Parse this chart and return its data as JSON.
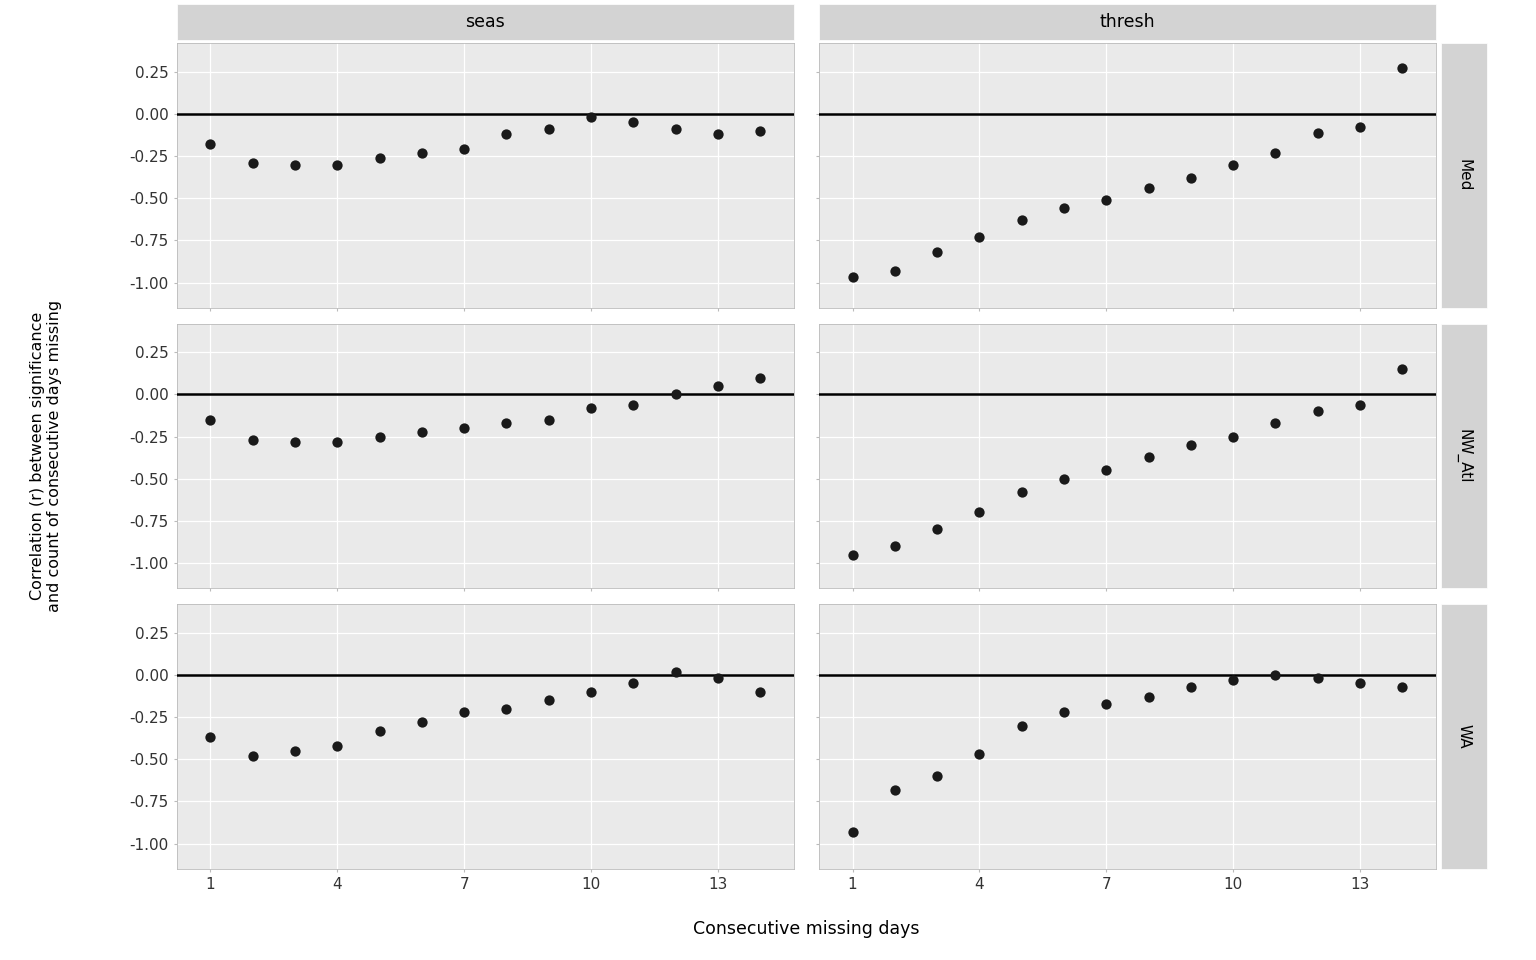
{
  "facet_cols": [
    "seas",
    "thresh"
  ],
  "facet_rows": [
    "Med",
    "NW_Atl",
    "WA"
  ],
  "panel_bg": "#EAEAEA",
  "strip_bg": "#D3D3D3",
  "dot_color": "#1a1a1a",
  "grid_color": "#FFFFFF",
  "hline_color": "#000000",
  "x_ticks": [
    1,
    4,
    7,
    10,
    13
  ],
  "y_ticks": [
    -1.0,
    -0.75,
    -0.5,
    -0.25,
    0.0,
    0.25
  ],
  "ylim": [
    -1.15,
    0.42
  ],
  "xlim": [
    0.2,
    14.8
  ],
  "xlabel": "Consecutive missing days",
  "ylabel": "Correlation (r) between significance\nand count of consecutive days missing",
  "Med_seas_x": [
    1,
    2,
    3,
    4,
    5,
    6,
    7,
    8,
    9,
    10,
    11,
    12,
    13,
    14
  ],
  "Med_seas_y": [
    -0.18,
    -0.29,
    -0.3,
    -0.3,
    -0.26,
    -0.23,
    -0.21,
    -0.12,
    -0.09,
    -0.02,
    -0.05,
    -0.09,
    -0.12,
    -0.1
  ],
  "Med_thresh_x": [
    1,
    2,
    3,
    4,
    5,
    6,
    7,
    8,
    9,
    10,
    11,
    12,
    13,
    14
  ],
  "Med_thresh_y": [
    -0.97,
    -0.93,
    -0.82,
    -0.73,
    -0.63,
    -0.56,
    -0.51,
    -0.44,
    -0.38,
    -0.3,
    -0.23,
    -0.11,
    -0.08,
    0.27
  ],
  "NW_Atl_seas_x": [
    1,
    2,
    3,
    4,
    5,
    6,
    7,
    8,
    9,
    10,
    11,
    12,
    13,
    14
  ],
  "NW_Atl_seas_y": [
    -0.15,
    -0.27,
    -0.28,
    -0.28,
    -0.25,
    -0.22,
    -0.2,
    -0.17,
    -0.15,
    -0.08,
    -0.06,
    0.0,
    0.05,
    0.1
  ],
  "NW_Atl_thresh_x": [
    1,
    2,
    3,
    4,
    5,
    6,
    7,
    8,
    9,
    10,
    11,
    12,
    13,
    14
  ],
  "NW_Atl_thresh_y": [
    -0.95,
    -0.9,
    -0.8,
    -0.7,
    -0.58,
    -0.5,
    -0.45,
    -0.37,
    -0.3,
    -0.25,
    -0.17,
    -0.1,
    -0.06,
    0.15
  ],
  "WA_seas_x": [
    1,
    2,
    3,
    4,
    5,
    6,
    7,
    8,
    9,
    10,
    11,
    12,
    13,
    14
  ],
  "WA_seas_y": [
    -0.37,
    -0.48,
    -0.45,
    -0.42,
    -0.33,
    -0.28,
    -0.22,
    -0.2,
    -0.15,
    -0.1,
    -0.05,
    0.02,
    -0.02,
    -0.1
  ],
  "WA_thresh_x": [
    1,
    2,
    3,
    4,
    5,
    6,
    7,
    8,
    9,
    10,
    11,
    12,
    13,
    14
  ],
  "WA_thresh_y": [
    -0.93,
    -0.68,
    -0.6,
    -0.47,
    -0.3,
    -0.22,
    -0.17,
    -0.13,
    -0.07,
    -0.03,
    0.0,
    -0.02,
    -0.05,
    -0.07
  ]
}
